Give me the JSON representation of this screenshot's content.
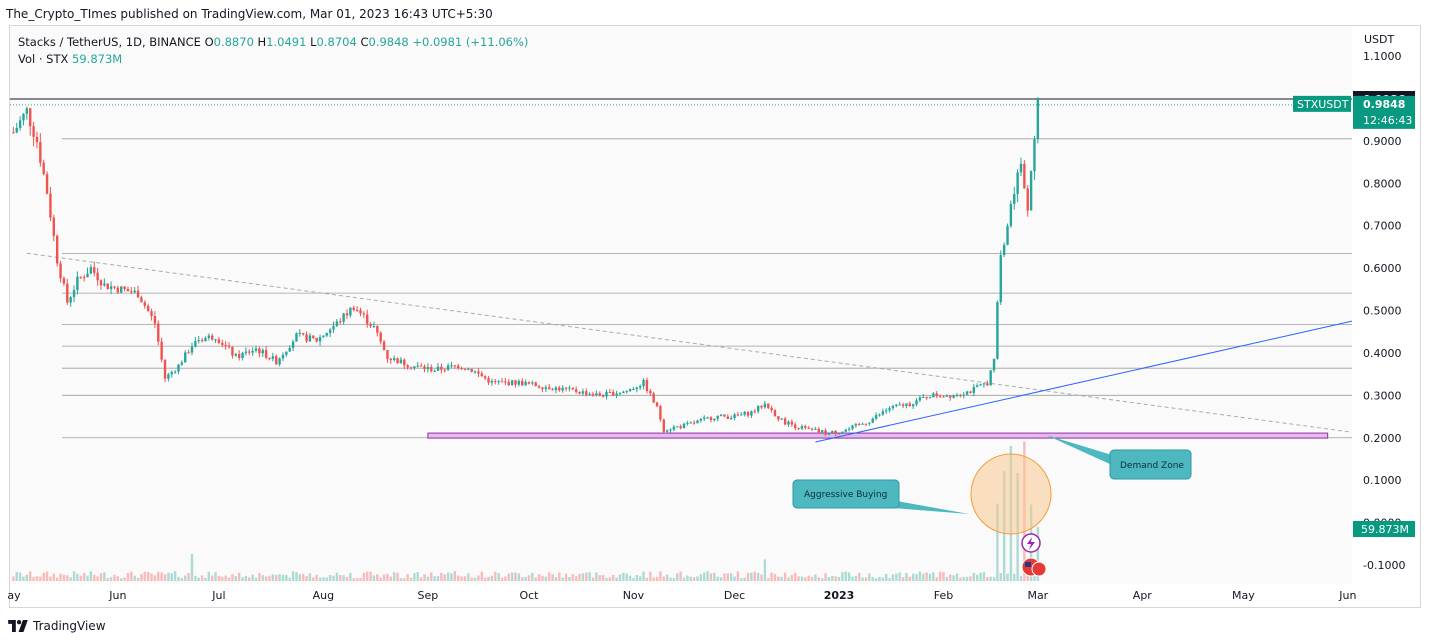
{
  "publisher_line": "The_Crypto_TImes published on TradingView.com, Mar 01, 2023 16:43 UTC+5:30",
  "legend": {
    "symbol": "Stacks / TetherUS, 1D, BINANCE",
    "open_label": "O",
    "open": "0.8870",
    "high_label": "H",
    "high": "1.0491",
    "low_label": "L",
    "low": "0.8704",
    "close_label": "C",
    "close": "0.9848",
    "change": "+0.0981 (+11.06%)",
    "volume_label": "Vol · STX",
    "volume": "59.873M"
  },
  "price_axis": {
    "unit": "USDT",
    "last_price": "0.9848",
    "ticker_label": "STXUSDT",
    "countdown": "12:46:43",
    "high_tag": "0.9986",
    "volume_tag": "59.873M"
  },
  "annotations": {
    "aggressive_buying": "Aggressive Buying",
    "demand_zone": "Demand Zone"
  },
  "footer": {
    "brand": "TradingView"
  },
  "colors": {
    "up": "#26a69a",
    "down": "#ef5350",
    "trendline": "#2962ff",
    "demand_zone_fill": "#e1bee7",
    "demand_zone_border": "#9c27b0",
    "callout_fill": "#4eb8c0",
    "highlight_circle": "#f8c98f",
    "axis_tag_dark": "#131722",
    "axis_tag_green": "#089981"
  },
  "chart_data": {
    "type": "candlestick",
    "title": "Stacks / TetherUS, 1D, BINANCE",
    "x_tick_labels": [
      "ay",
      "Jun",
      "Jul",
      "Aug",
      "Sep",
      "Oct",
      "Nov",
      "Dec",
      "2023",
      "Feb",
      "Mar",
      "Apr",
      "May",
      "Jun"
    ],
    "y_tick_labels": [
      "1.1000",
      "0.9000",
      "0.8000",
      "0.7000",
      "0.6000",
      "0.5000",
      "0.4000",
      "0.3000",
      "0.2000",
      "0.1000",
      "0.0000",
      "-0.1000"
    ],
    "y_ticks": [
      1.1,
      0.9,
      0.8,
      0.7,
      0.6,
      0.5,
      0.4,
      0.3,
      0.2,
      0.1,
      0.0,
      -0.1
    ],
    "ylim": [
      -0.1,
      1.1
    ],
    "date_range": [
      "2022-05-01",
      "2023-03-01"
    ],
    "horizontal_levels": [
      0.9986,
      0.9048,
      0.634,
      0.541,
      0.467,
      0.416,
      0.364,
      0.3,
      0.2
    ],
    "demand_zone": {
      "from": "2022-09-01",
      "to": "2023-05-26",
      "low": 0.2,
      "high": 0.211
    },
    "trendlines": [
      {
        "style": "dashed",
        "points": [
          [
            "2022-05-05",
            0.635
          ],
          [
            "2023-06-06",
            0.213
          ]
        ]
      },
      {
        "style": "solid",
        "points": [
          [
            "2022-12-25",
            0.19
          ],
          [
            "2023-06-06",
            0.475
          ]
        ]
      }
    ],
    "price_path": [
      [
        "2022-05-01",
        0.92
      ],
      [
        "2022-05-05",
        0.97
      ],
      [
        "2022-05-08",
        0.9
      ],
      [
        "2022-05-11",
        0.78
      ],
      [
        "2022-05-14",
        0.62
      ],
      [
        "2022-05-17",
        0.52
      ],
      [
        "2022-05-20",
        0.57
      ],
      [
        "2022-05-24",
        0.6
      ],
      [
        "2022-05-28",
        0.56
      ],
      [
        "2022-06-02",
        0.55
      ],
      [
        "2022-06-07",
        0.54
      ],
      [
        "2022-06-12",
        0.47
      ],
      [
        "2022-06-15",
        0.34
      ],
      [
        "2022-06-19",
        0.37
      ],
      [
        "2022-06-24",
        0.43
      ],
      [
        "2022-06-30",
        0.44
      ],
      [
        "2022-07-06",
        0.39
      ],
      [
        "2022-07-12",
        0.41
      ],
      [
        "2022-07-18",
        0.38
      ],
      [
        "2022-07-24",
        0.44
      ],
      [
        "2022-07-30",
        0.43
      ],
      [
        "2022-08-05",
        0.47
      ],
      [
        "2022-08-10",
        0.51
      ],
      [
        "2022-08-16",
        0.46
      ],
      [
        "2022-08-20",
        0.39
      ],
      [
        "2022-08-27",
        0.37
      ],
      [
        "2022-09-03",
        0.36
      ],
      [
        "2022-09-10",
        0.37
      ],
      [
        "2022-09-14",
        0.36
      ],
      [
        "2022-09-20",
        0.33
      ],
      [
        "2022-09-28",
        0.33
      ],
      [
        "2022-10-06",
        0.32
      ],
      [
        "2022-10-15",
        0.31
      ],
      [
        "2022-10-22",
        0.3
      ],
      [
        "2022-10-30",
        0.31
      ],
      [
        "2022-11-04",
        0.33
      ],
      [
        "2022-11-08",
        0.27
      ],
      [
        "2022-11-10",
        0.22
      ],
      [
        "2022-11-17",
        0.23
      ],
      [
        "2022-11-25",
        0.25
      ],
      [
        "2022-12-01",
        0.25
      ],
      [
        "2022-12-06",
        0.26
      ],
      [
        "2022-12-10",
        0.28
      ],
      [
        "2022-12-15",
        0.24
      ],
      [
        "2022-12-22",
        0.22
      ],
      [
        "2022-12-29",
        0.21
      ],
      [
        "2023-01-04",
        0.22
      ],
      [
        "2023-01-10",
        0.24
      ],
      [
        "2023-01-16",
        0.27
      ],
      [
        "2023-01-22",
        0.28
      ],
      [
        "2023-01-28",
        0.3
      ],
      [
        "2023-02-03",
        0.3
      ],
      [
        "2023-02-09",
        0.31
      ],
      [
        "2023-02-14",
        0.33
      ],
      [
        "2023-02-16",
        0.38
      ],
      [
        "2023-02-17",
        0.52
      ],
      [
        "2023-02-18",
        0.62
      ],
      [
        "2023-02-20",
        0.7
      ],
      [
        "2023-02-22",
        0.79
      ],
      [
        "2023-02-24",
        0.85
      ],
      [
        "2023-02-26",
        0.75
      ],
      [
        "2023-02-28",
        0.887
      ],
      [
        "2023-03-01",
        0.9848
      ]
    ],
    "volume_series": {
      "name": "Vol · STX",
      "last": 59.873,
      "spikes": [
        [
          "2022-06-23",
          30
        ],
        [
          "2022-12-10",
          24
        ],
        [
          "2023-02-17",
          86
        ],
        [
          "2023-02-19",
          122
        ],
        [
          "2023-02-21",
          150
        ],
        [
          "2023-02-23",
          120
        ],
        [
          "2023-02-25",
          155
        ],
        [
          "2023-02-27",
          85
        ],
        [
          "2023-03-01",
          59.873
        ]
      ]
    }
  }
}
